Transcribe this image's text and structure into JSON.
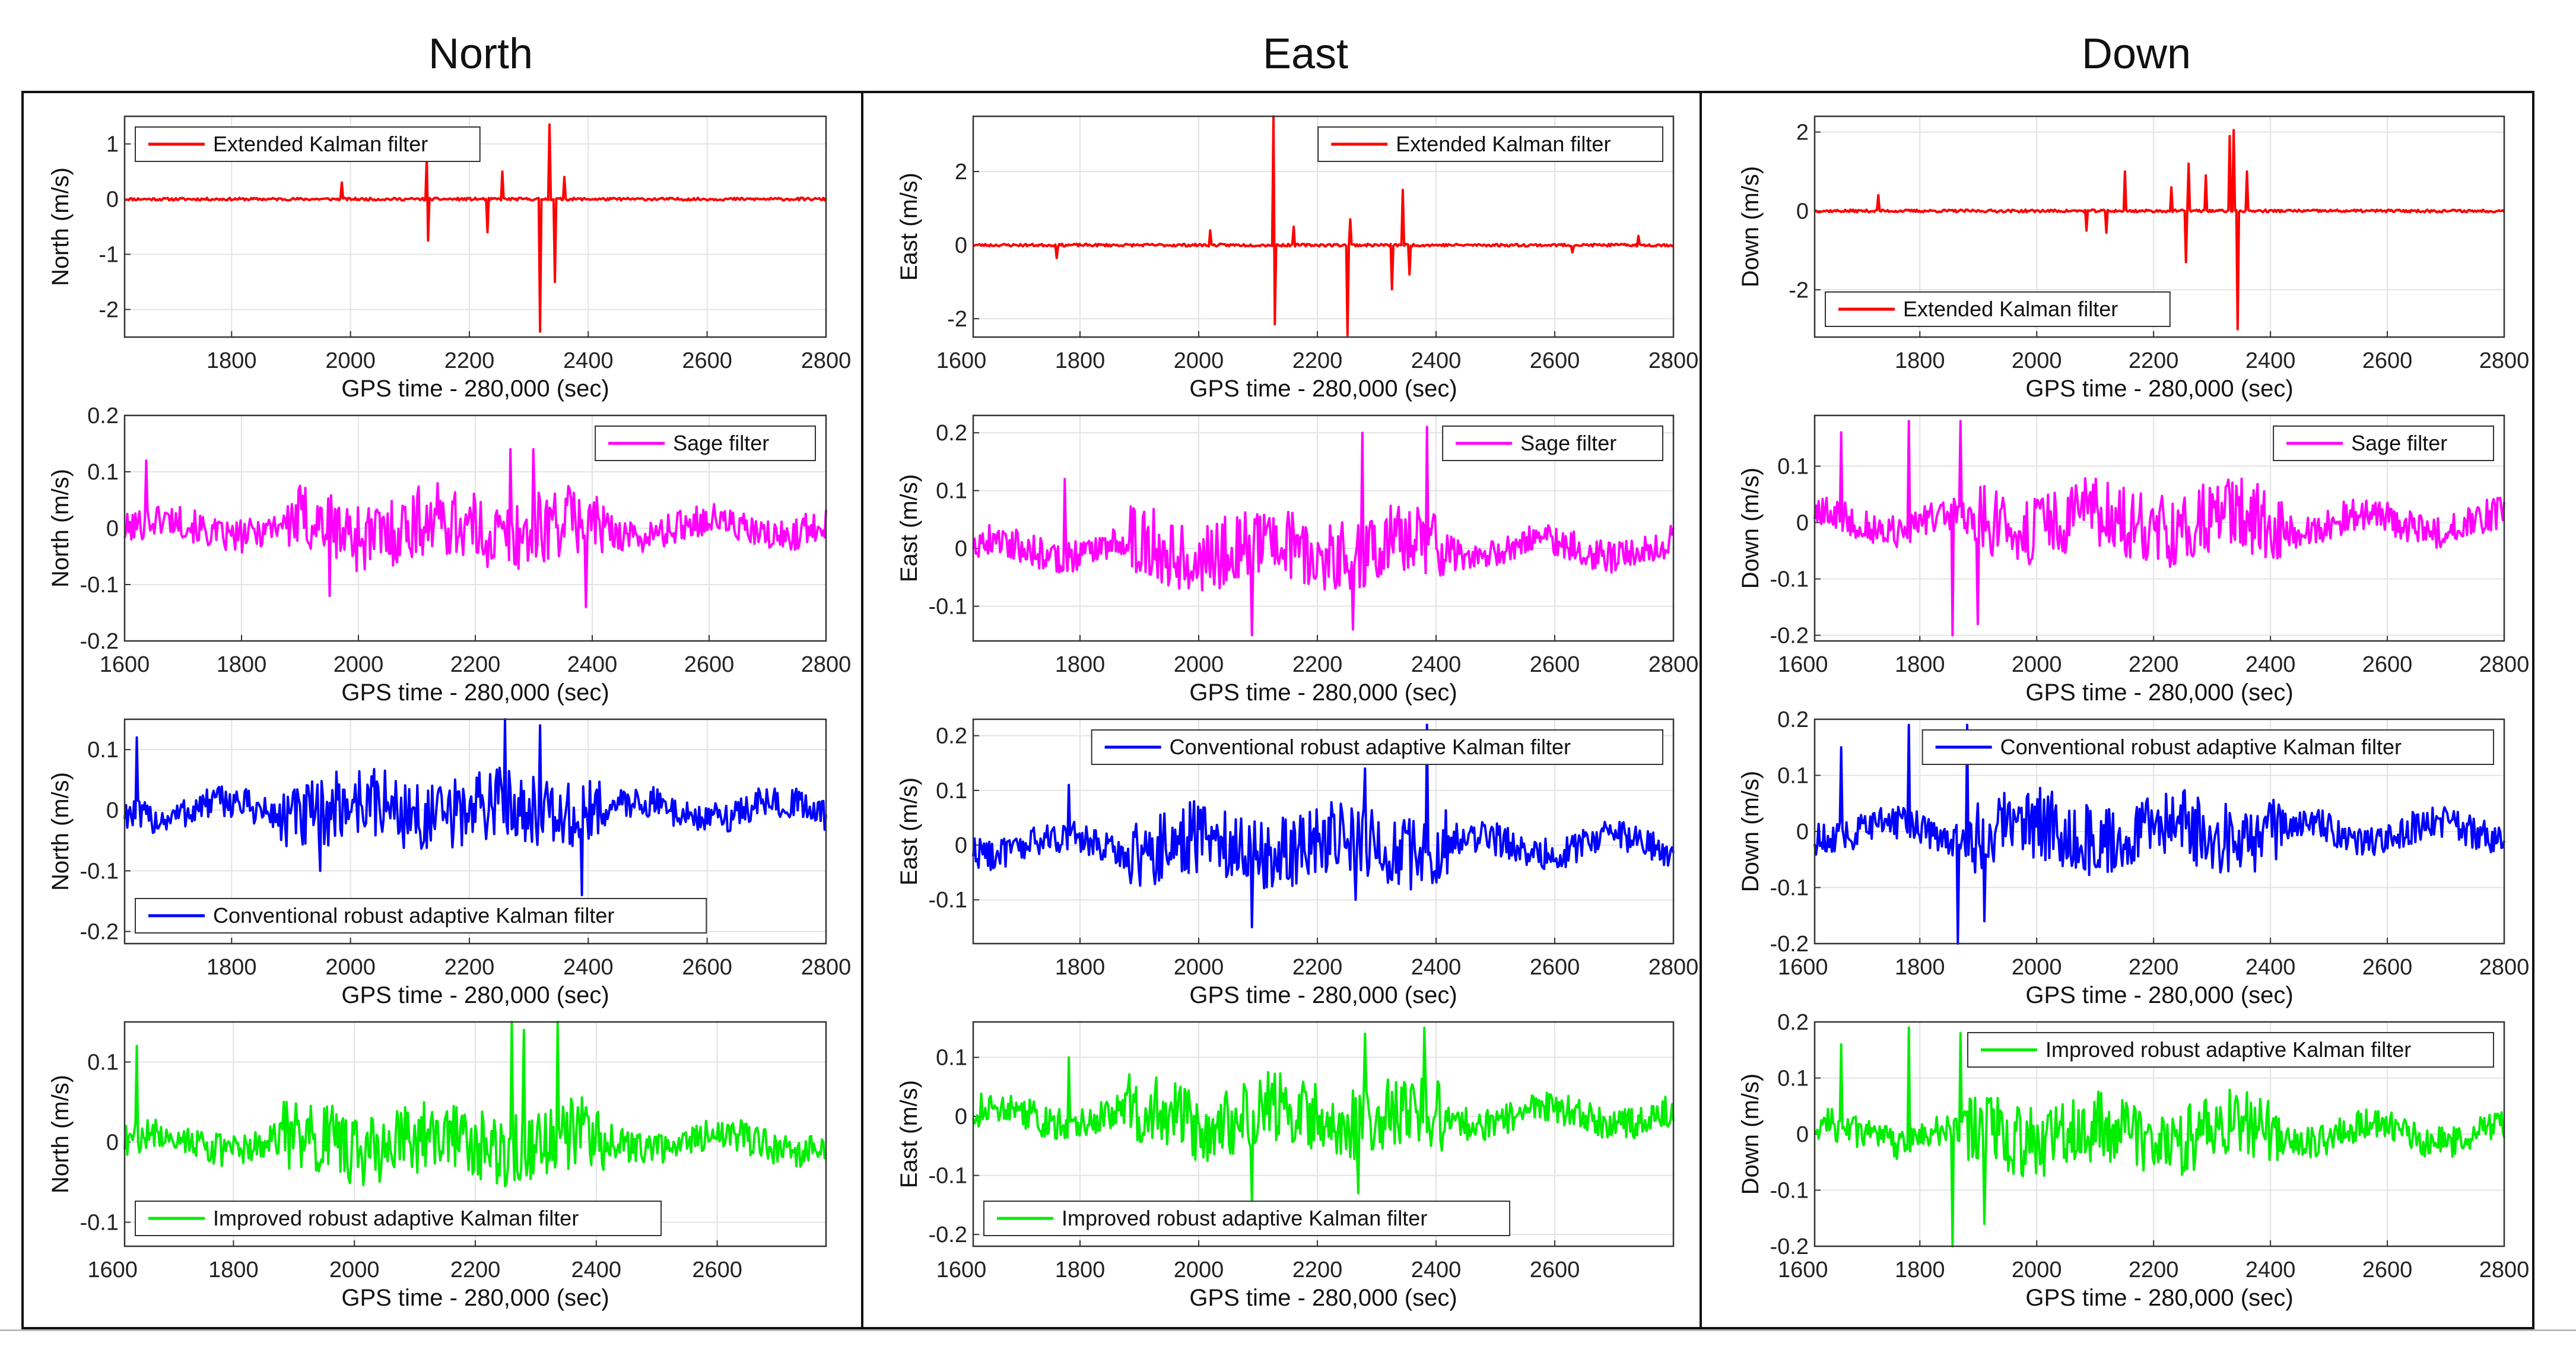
{
  "columns": [
    "North",
    "East",
    "Down"
  ],
  "colors": {
    "ekf": "#ff0000",
    "sage": "#ff00ff",
    "crakf": "#0000ff",
    "irakf": "#00ee00"
  },
  "chart_data": [
    {
      "type": "line",
      "component": "North",
      "row": 0,
      "title": "",
      "legend": "Extended Kalman filter",
      "legend_position": "top-left",
      "color": "ekf",
      "ylabel": "North (m/s)",
      "xlabel": "GPS time - 280,000 (sec)",
      "xlim": [
        1620,
        2800
      ],
      "ylim": [
        -2.5,
        1.5
      ],
      "xticks": [
        1800,
        2000,
        2200,
        2400,
        2600,
        2800
      ],
      "yticks": [
        -2,
        -1,
        0,
        1
      ],
      "ytick_labels": [
        "-2",
        "-1",
        "0",
        "1"
      ],
      "signal": "ekf",
      "seed": 11,
      "spikes": [
        [
          1985,
          0.3
        ],
        [
          2128,
          0.8
        ],
        [
          2130,
          -0.75
        ],
        [
          2230,
          -0.6
        ],
        [
          2255,
          0.5
        ],
        [
          2320,
          -2.4
        ],
        [
          2335,
          1.35
        ],
        [
          2345,
          -1.5
        ],
        [
          2360,
          0.4
        ]
      ]
    },
    {
      "type": "line",
      "component": "East",
      "row": 0,
      "title": "",
      "legend": "Extended Kalman filter",
      "legend_position": "top-right",
      "color": "ekf",
      "ylabel": "East (m/s)",
      "xlabel": "GPS time - 280,000 (sec)",
      "xlim": [
        1620,
        2800
      ],
      "ylim": [
        -2.5,
        3.5
      ],
      "xticks": [
        1600,
        1800,
        2000,
        2200,
        2400,
        2600,
        2800
      ],
      "yticks": [
        -2,
        0,
        2
      ],
      "ytick_labels": [
        "-2",
        "0",
        "2"
      ],
      "signal": "ekf",
      "seed": 23,
      "spikes": [
        [
          1760,
          -0.35
        ],
        [
          2020,
          0.4
        ],
        [
          2125,
          3.5
        ],
        [
          2128,
          -2.15
        ],
        [
          2160,
          0.5
        ],
        [
          2250,
          -2.45
        ],
        [
          2255,
          0.7
        ],
        [
          2325,
          -1.2
        ],
        [
          2345,
          1.5
        ],
        [
          2355,
          -0.8
        ],
        [
          2630,
          -0.2
        ],
        [
          2740,
          0.25
        ]
      ]
    },
    {
      "type": "line",
      "component": "Down",
      "row": 0,
      "title": "",
      "legend": "Extended Kalman filter",
      "legend_position": "bottom-left",
      "color": "ekf",
      "ylabel": "Down (m/s)",
      "xlabel": "GPS time - 280,000 (sec)",
      "xlim": [
        1620,
        2800
      ],
      "ylim": [
        -3.2,
        2.4
      ],
      "xticks": [
        1800,
        2000,
        2200,
        2400,
        2600,
        2800
      ],
      "yticks": [
        -2,
        0,
        2
      ],
      "ytick_labels": [
        "-2",
        "0",
        "2"
      ],
      "signal": "ekf",
      "seed": 37,
      "spikes": [
        [
          1730,
          0.4
        ],
        [
          2085,
          -0.5
        ],
        [
          2120,
          -0.55
        ],
        [
          2150,
          1.0
        ],
        [
          2230,
          0.6
        ],
        [
          2255,
          -1.3
        ],
        [
          2260,
          1.2
        ],
        [
          2290,
          0.9
        ],
        [
          2330,
          1.9
        ],
        [
          2338,
          2.05
        ],
        [
          2345,
          -3.0
        ],
        [
          2360,
          1.0
        ]
      ]
    },
    {
      "type": "line",
      "component": "North",
      "row": 1,
      "title": "",
      "legend": "Sage filter",
      "legend_position": "top-right",
      "color": "sage",
      "ylabel": "North (m/s)",
      "xlabel": "GPS time - 280,000 (sec)",
      "xlim": [
        1600,
        2800
      ],
      "ylim": [
        -0.2,
        0.2
      ],
      "xticks": [
        1600,
        1800,
        2000,
        2200,
        2400,
        2600,
        2800
      ],
      "yticks": [
        -0.2,
        -0.1,
        0,
        0.1,
        0.2
      ],
      "ytick_labels": [
        "-0.2",
        "-0.1",
        "0",
        "0.1",
        "0.2"
      ],
      "signal": "n",
      "seed": 101,
      "spikes": [
        [
          1638,
          0.12
        ],
        [
          1950,
          -0.12
        ],
        [
          2260,
          0.14
        ],
        [
          2300,
          0.14
        ],
        [
          2390,
          -0.14
        ]
      ]
    },
    {
      "type": "line",
      "component": "East",
      "row": 1,
      "title": "",
      "legend": "Sage filter",
      "legend_position": "top-right",
      "color": "sage",
      "ylabel": "East (m/s)",
      "xlabel": "GPS time - 280,000 (sec)",
      "xlim": [
        1620,
        2800
      ],
      "ylim": [
        -0.16,
        0.23
      ],
      "xticks": [
        1800,
        2000,
        2200,
        2400,
        2600,
        2800
      ],
      "yticks": [
        -0.1,
        0,
        0.1,
        0.2
      ],
      "ytick_labels": [
        "-0.1",
        "0",
        "0.1",
        "0.2"
      ],
      "signal": "e",
      "seed": 202,
      "spikes": [
        [
          1775,
          0.12
        ],
        [
          2090,
          -0.15
        ],
        [
          2260,
          -0.14
        ],
        [
          2275,
          0.2
        ],
        [
          2385,
          0.21
        ]
      ]
    },
    {
      "type": "line",
      "component": "Down",
      "row": 1,
      "title": "",
      "legend": "Sage filter",
      "legend_position": "top-right",
      "color": "sage",
      "ylabel": "Down (m/s)",
      "xlabel": "GPS time - 280,000 (sec)",
      "xlim": [
        1620,
        2800
      ],
      "ylim": [
        -0.21,
        0.19
      ],
      "xticks": [
        1600,
        1800,
        2000,
        2200,
        2400,
        2600,
        2800
      ],
      "yticks": [
        -0.2,
        -0.1,
        0,
        0.1
      ],
      "ytick_labels": [
        "-0.2",
        "-0.1",
        "0",
        "0.1"
      ],
      "signal": "d",
      "seed": 303,
      "spikes": [
        [
          1665,
          0.16
        ],
        [
          1780,
          0.18
        ],
        [
          1855,
          -0.2
        ],
        [
          1870,
          0.18
        ],
        [
          1900,
          -0.18
        ]
      ]
    },
    {
      "type": "line",
      "component": "North",
      "row": 2,
      "title": "",
      "legend": "Conventional robust adaptive Kalman filter",
      "legend_position": "bottom-left",
      "color": "crakf",
      "ylabel": "North (m/s)",
      "xlabel": "GPS time - 280,000 (sec)",
      "xlim": [
        1620,
        2800
      ],
      "ylim": [
        -0.22,
        0.15
      ],
      "xticks": [
        1800,
        2000,
        2200,
        2400,
        2600,
        2800
      ],
      "yticks": [
        -0.2,
        -0.1,
        0,
        0.1
      ],
      "ytick_labels": [
        "-0.2",
        "-0.1",
        "0",
        "0.1"
      ],
      "signal": "n",
      "seed": 104,
      "spikes": [
        [
          1640,
          0.12
        ],
        [
          1950,
          -0.1
        ],
        [
          2260,
          0.15
        ],
        [
          2320,
          0.14
        ],
        [
          2390,
          -0.14
        ]
      ]
    },
    {
      "type": "line",
      "component": "East",
      "row": 2,
      "title": "",
      "legend": "Conventional robust adaptive Kalman filter",
      "legend_position": "top-right",
      "color": "crakf",
      "ylabel": "East (m/s)",
      "xlabel": "GPS time - 280,000 (sec)",
      "xlim": [
        1620,
        2800
      ],
      "ylim": [
        -0.18,
        0.23
      ],
      "xticks": [
        1800,
        2000,
        2200,
        2400,
        2600,
        2800
      ],
      "yticks": [
        -0.1,
        0,
        0.1,
        0.2
      ],
      "ytick_labels": [
        "-0.1",
        "0",
        "0.1",
        "0.2"
      ],
      "signal": "e",
      "seed": 205,
      "spikes": [
        [
          1780,
          0.11
        ],
        [
          2090,
          -0.15
        ],
        [
          2265,
          -0.1
        ],
        [
          2280,
          0.14
        ],
        [
          2385,
          0.22
        ]
      ]
    },
    {
      "type": "line",
      "component": "Down",
      "row": 2,
      "title": "",
      "legend": "Conventional robust adaptive Kalman filter",
      "legend_position": "top-right",
      "color": "crakf",
      "ylabel": "Down (m/s)",
      "xlabel": "GPS time - 280,000 (sec)",
      "xlim": [
        1620,
        2800
      ],
      "ylim": [
        -0.2,
        0.2
      ],
      "xticks": [
        1600,
        1800,
        2000,
        2200,
        2400,
        2600,
        2800
      ],
      "yticks": [
        -0.2,
        -0.1,
        0,
        0.1,
        0.2
      ],
      "ytick_labels": [
        "-0.2",
        "-0.1",
        "0",
        "0.1",
        "0.2"
      ],
      "signal": "d",
      "seed": 306,
      "spikes": [
        [
          1665,
          0.15
        ],
        [
          1780,
          0.19
        ],
        [
          1865,
          -0.21
        ],
        [
          1880,
          0.19
        ],
        [
          1910,
          -0.16
        ]
      ]
    },
    {
      "type": "line",
      "component": "North",
      "row": 3,
      "title": "",
      "legend": "Improved robust adaptive Kalman filter",
      "legend_position": "bottom-left",
      "color": "irakf",
      "ylabel": "North (m/s)",
      "xlabel": "GPS time - 280,000 (sec)",
      "xlim": [
        1620,
        2780
      ],
      "ylim": [
        -0.13,
        0.15
      ],
      "xticks": [
        1600,
        1800,
        2000,
        2200,
        2400,
        2600
      ],
      "yticks": [
        -0.1,
        0,
        0.1
      ],
      "ytick_labels": [
        "-0.1",
        "0",
        "0.1"
      ],
      "signal": "n",
      "seed": 107,
      "spikes": [
        [
          1640,
          0.12
        ],
        [
          2260,
          0.15
        ],
        [
          2280,
          0.14
        ],
        [
          2335,
          0.15
        ]
      ]
    },
    {
      "type": "line",
      "component": "East",
      "row": 3,
      "title": "",
      "legend": "Improved robust adaptive Kalman filter",
      "legend_position": "bottom-left",
      "color": "irakf",
      "ylabel": "East (m/s)",
      "xlabel": "GPS time - 280,000 (sec)",
      "xlim": [
        1620,
        2800
      ],
      "ylim": [
        -0.22,
        0.16
      ],
      "xticks": [
        1600,
        1800,
        2000,
        2200,
        2400,
        2600
      ],
      "yticks": [
        -0.2,
        -0.1,
        0,
        0.1
      ],
      "ytick_labels": [
        "-0.2",
        "-0.1",
        "0",
        "0.1"
      ],
      "signal": "e",
      "seed": 208,
      "spikes": [
        [
          1780,
          0.1
        ],
        [
          2090,
          -0.15
        ],
        [
          2270,
          -0.13
        ],
        [
          2280,
          0.14
        ],
        [
          2380,
          0.15
        ]
      ]
    },
    {
      "type": "line",
      "component": "Down",
      "row": 3,
      "title": "",
      "legend": "Improved robust adaptive Kalman filter",
      "legend_position": "top-right",
      "color": "irakf",
      "ylabel": "Down (m/s)",
      "xlabel": "GPS time - 280,000 (sec)",
      "xlim": [
        1620,
        2800
      ],
      "ylim": [
        -0.2,
        0.2
      ],
      "xticks": [
        1600,
        1800,
        2000,
        2200,
        2400,
        2600,
        2800
      ],
      "yticks": [
        -0.2,
        -0.1,
        0,
        0.1,
        0.2
      ],
      "ytick_labels": [
        "-0.2",
        "-0.1",
        "0",
        "0.1",
        "0.2"
      ],
      "signal": "d",
      "seed": 309,
      "spikes": [
        [
          1665,
          0.16
        ],
        [
          1780,
          0.19
        ],
        [
          1855,
          -0.2
        ],
        [
          1870,
          0.18
        ],
        [
          1910,
          -0.16
        ]
      ]
    }
  ]
}
